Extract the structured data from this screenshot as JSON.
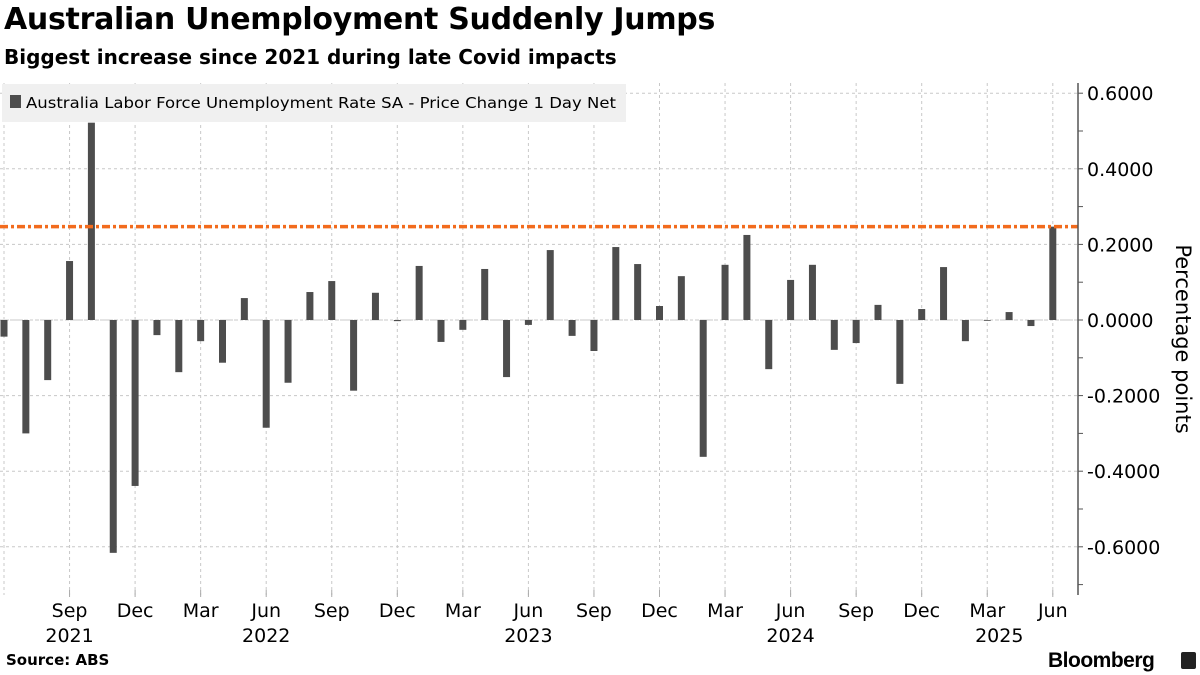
{
  "header": {
    "title": "Australian Unemployment Suddenly Jumps",
    "subtitle": "Biggest increase since 2021 during late Covid impacts"
  },
  "footer": {
    "source": "Source: ABS",
    "brand": "Bloomberg"
  },
  "chart_data": {
    "type": "bar",
    "title": "Australian Unemployment Suddenly Jumps",
    "subtitle": "Biggest increase since 2021 during late Covid impacts",
    "ylabel": "Percentage points",
    "ylim": [
      -0.72,
      0.63
    ],
    "y_ticks": [
      "0.6000",
      "0.4000",
      "0.2000",
      "0.0000",
      "-0.2000",
      "-0.4000",
      "-0.6000"
    ],
    "y_tick_values": [
      0.6,
      0.4,
      0.2,
      0,
      -0.2,
      -0.4,
      -0.6
    ],
    "y_axis_position": "right",
    "grid": true,
    "legend_position": "top-left",
    "bar_color": "#4d4d4d",
    "reference_line": {
      "value": 0.247,
      "color": "#f26b1d",
      "style": "dash-dot"
    },
    "x_tick_labels": [
      {
        "month": "2021-09",
        "label": "Sep",
        "year": "2021"
      },
      {
        "month": "2021-12",
        "label": "Dec"
      },
      {
        "month": "2022-03",
        "label": "Mar"
      },
      {
        "month": "2022-06",
        "label": "Jun",
        "year": "2022"
      },
      {
        "month": "2022-09",
        "label": "Sep"
      },
      {
        "month": "2022-12",
        "label": "Dec"
      },
      {
        "month": "2023-03",
        "label": "Mar"
      },
      {
        "month": "2023-06",
        "label": "Jun",
        "year": "2023"
      },
      {
        "month": "2023-09",
        "label": "Sep"
      },
      {
        "month": "2023-12",
        "label": "Dec"
      },
      {
        "month": "2024-03",
        "label": "Mar"
      },
      {
        "month": "2024-06",
        "label": "Jun",
        "year": "2024"
      },
      {
        "month": "2024-09",
        "label": "Sep"
      },
      {
        "month": "2024-12",
        "label": "Dec"
      },
      {
        "month": "2025-03",
        "label": "Mar",
        "year": "2025"
      },
      {
        "month": "2025-06",
        "label": "Jun"
      }
    ],
    "series": [
      {
        "name": "Australia Labor Force Unemployment Rate SA - Price Change 1 Day Net",
        "categories": [
          "2021-06",
          "2021-07",
          "2021-08",
          "2021-09",
          "2021-10",
          "2021-11",
          "2021-12",
          "2022-01",
          "2022-02",
          "2022-03",
          "2022-04",
          "2022-05",
          "2022-06",
          "2022-07",
          "2022-08",
          "2022-09",
          "2022-10",
          "2022-11",
          "2022-12",
          "2023-01",
          "2023-02",
          "2023-03",
          "2023-04",
          "2023-05",
          "2023-06",
          "2023-07",
          "2023-08",
          "2023-09",
          "2023-10",
          "2023-11",
          "2023-12",
          "2024-01",
          "2024-02",
          "2024-03",
          "2024-04",
          "2024-05",
          "2024-06",
          "2024-07",
          "2024-08",
          "2024-09",
          "2024-10",
          "2024-11",
          "2024-12",
          "2025-01",
          "2025-02",
          "2025-03",
          "2025-04",
          "2025-05",
          "2025-06"
        ],
        "values": [
          -0.044,
          -0.3,
          -0.159,
          0.156,
          0.522,
          -0.616,
          -0.439,
          -0.04,
          -0.138,
          -0.056,
          -0.113,
          0.058,
          -0.285,
          -0.166,
          0.074,
          0.103,
          -0.187,
          0.072,
          -0.003,
          0.143,
          -0.058,
          -0.026,
          0.135,
          -0.151,
          -0.013,
          0.185,
          -0.042,
          -0.082,
          0.193,
          0.148,
          0.037,
          0.116,
          -0.362,
          0.146,
          0.225,
          -0.13,
          0.106,
          0.146,
          -0.079,
          -0.061,
          0.04,
          -0.169,
          0.029,
          0.14,
          -0.056,
          -0.002,
          0.021,
          -0.016,
          0.247
        ]
      }
    ]
  }
}
